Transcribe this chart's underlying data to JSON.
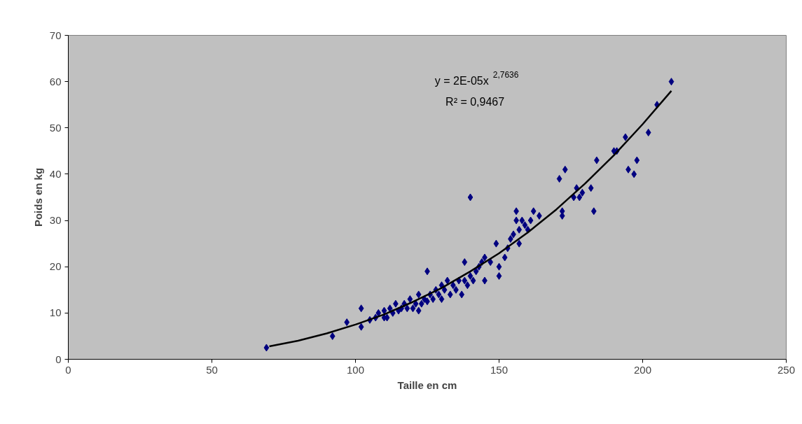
{
  "chart_data": {
    "type": "scatter",
    "xlabel": "Taille en cm",
    "ylabel": "Poids en kg",
    "annotations": [
      "y = 2E-05x$^{2,7636}$",
      "R² = 0,9467"
    ],
    "xlim": [
      0,
      250
    ],
    "xticks": [
      0,
      50,
      100,
      150,
      200,
      250
    ],
    "ylim": [
      0,
      70
    ],
    "yticks": [
      0,
      10,
      20,
      30,
      40,
      50,
      60,
      70
    ],
    "grid": false,
    "marker": "diamond",
    "series": [
      {
        "color": "#000080",
        "x": [
          69,
          92,
          97,
          102,
          102,
          105,
          107,
          108,
          110,
          110,
          111,
          112,
          113,
          114,
          115,
          116,
          117,
          118,
          119,
          120,
          121,
          122,
          122,
          123,
          124,
          125,
          125,
          126,
          127,
          128,
          129,
          130,
          130,
          131,
          132,
          133,
          134,
          135,
          136,
          137,
          138,
          138,
          139,
          140,
          140,
          141,
          142,
          143,
          144,
          145,
          145,
          147,
          149,
          150,
          150,
          152,
          153,
          154,
          155,
          156,
          156,
          157,
          157,
          158,
          159,
          160,
          161,
          162,
          164,
          171,
          172,
          172,
          173,
          176,
          177,
          178,
          179,
          182,
          183,
          184,
          190,
          191,
          194,
          195,
          197,
          198,
          202,
          205,
          210
        ],
        "values": [
          2.5,
          5,
          8,
          7,
          11,
          8.5,
          9,
          10,
          9,
          10.5,
          9,
          11,
          10,
          12,
          10.5,
          11,
          12,
          11,
          13,
          11,
          12,
          14,
          10.5,
          12,
          13,
          12.5,
          19,
          14,
          13,
          15,
          14,
          16,
          13,
          15,
          17,
          14,
          16,
          15,
          17,
          14,
          21,
          17,
          16,
          35,
          18,
          17,
          19,
          20,
          21,
          17,
          22,
          21,
          25,
          18,
          20,
          22,
          24,
          26,
          27,
          32,
          30,
          25,
          28,
          30,
          29,
          28,
          30,
          32,
          31,
          39,
          31,
          32,
          41,
          35,
          37,
          35,
          36,
          37,
          32,
          43,
          45,
          45,
          48,
          41,
          40,
          43,
          49,
          55,
          60
        ]
      },
      {
        "type": "line",
        "color": "#000000",
        "marker": "none",
        "x": [
          70,
          80,
          90,
          100,
          110,
          120,
          130,
          140,
          150,
          160,
          170,
          180,
          190,
          200,
          210
        ],
        "values": [
          2.8,
          4.0,
          5.6,
          7.5,
          9.7,
          12.4,
          15.4,
          19.0,
          22.9,
          27.4,
          32.4,
          38.0,
          44.1,
          50.8,
          58
        ]
      }
    ]
  }
}
